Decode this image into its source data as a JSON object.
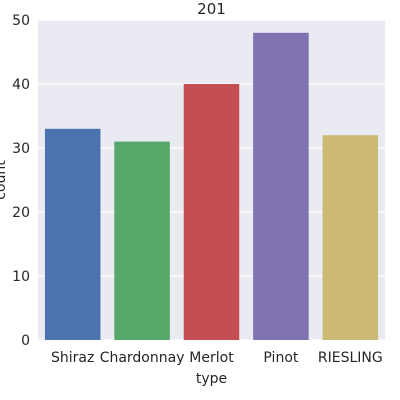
{
  "chart_data": {
    "type": "bar",
    "title": "201",
    "xlabel": "type",
    "ylabel": "count",
    "categories": [
      "Shiraz",
      "Chardonnay",
      "Merlot",
      "Pinot",
      "RIESLING"
    ],
    "values": [
      33,
      31,
      40,
      48,
      32
    ],
    "ylim": [
      0,
      50
    ],
    "yticks": [
      0,
      10,
      20,
      30,
      40,
      50
    ],
    "grid": true,
    "colors": [
      "#4c72b0",
      "#55a868",
      "#c44e52",
      "#8172b2",
      "#ccb974"
    ],
    "background": "#eaeaf2"
  }
}
